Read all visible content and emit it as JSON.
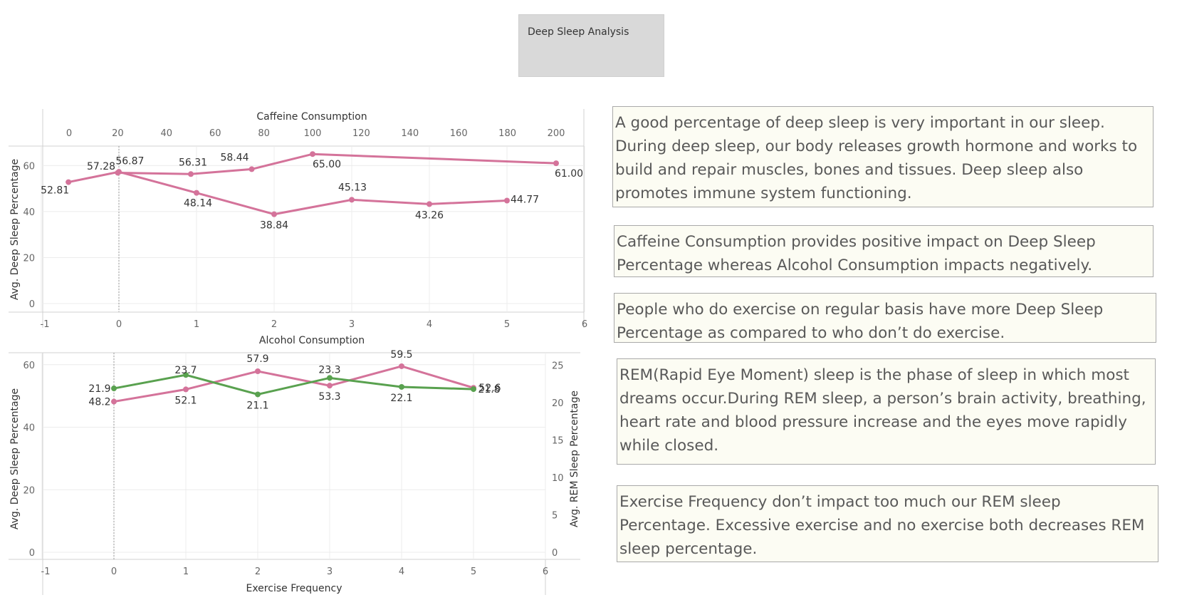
{
  "header": {
    "title": "Deep Sleep Analysis"
  },
  "chart_data": [
    {
      "type": "line",
      "series": [
        {
          "name": "",
          "xaxis": "Caffeine Consumption",
          "color": "#d4739a",
          "x": [
            20,
            50,
            75,
            100,
            200
          ],
          "y": [
            56.87,
            56.31,
            58.44,
            65.0,
            61.0
          ]
        },
        {
          "name": "",
          "xaxis": "Alcohol Consumption",
          "color": "#d4739a",
          "x": [
            -0.65,
            0,
            1,
            2,
            3,
            4,
            5
          ],
          "y": [
            52.81,
            57.28,
            48.14,
            38.84,
            45.13,
            43.26,
            44.77
          ]
        }
      ],
      "x_top": {
        "label": "Caffeine Consumption",
        "ticks": [
          0,
          20,
          40,
          60,
          80,
          100,
          120,
          140,
          160,
          180,
          200
        ]
      },
      "x_bottom": {
        "label": "Alcohol Consumption",
        "ticks": [
          -1,
          0,
          1,
          2,
          3,
          4,
          5,
          6
        ]
      },
      "ylabel": "Avg. Deep Sleep Percentage",
      "y_ticks": [
        0,
        20,
        40,
        60
      ],
      "ylim": [
        0,
        66
      ],
      "data_labels": [
        "52.81",
        "57.28",
        "56.87",
        "56.31",
        "48.14",
        "58.44",
        "38.84",
        "65.00",
        "45.13",
        "43.26",
        "44.77",
        "61.00"
      ],
      "grid": true
    },
    {
      "type": "line",
      "categories": [
        0,
        1,
        2,
        3,
        4,
        5
      ],
      "series": [
        {
          "name": "",
          "axis": "left",
          "color": "#d4739a",
          "values": [
            48.2,
            52.1,
            57.9,
            53.3,
            59.5,
            52.6
          ]
        },
        {
          "name": "",
          "axis": "right",
          "color": "#59a14f",
          "values": [
            21.9,
            23.7,
            21.1,
            23.3,
            22.1,
            21.8
          ]
        }
      ],
      "xlabel": "Exercise Frequency",
      "x_ticks": [
        -1,
        0,
        1,
        2,
        3,
        4,
        5,
        6
      ],
      "ylabel": "Avg. Deep Sleep Percentage",
      "y_ticks": [
        0,
        20,
        40,
        60
      ],
      "ylim": [
        0,
        62
      ],
      "y2label": "Avg. REM Sleep Percentage",
      "y2_ticks": [
        0,
        5,
        10,
        15,
        20,
        25
      ],
      "y2lim": [
        0,
        26
      ],
      "grid": true
    }
  ],
  "notes": [
    "A good percentage of deep sleep is very important in our sleep. During deep sleep, our body releases growth hormone and works to build and repair muscles, bones and tissues. Deep sleep also promotes immune system functioning.",
    "Caffeine Consumption provides positive impact on Deep Sleep Percentage whereas Alcohol Consumption impacts negatively.",
    "People who do exercise on regular basis have more Deep Sleep Percentage as compared to who don’t do exercise.",
    "REM(Rapid Eye Moment) sleep is the phase of sleep in which most dreams occur.During REM sleep, a person’s brain activity, breathing, heart rate and blood pressure increase and the eyes move rapidly while closed.",
    "Exercise Frequency don’t impact too much our REM sleep Percentage. Excessive exercise and no exercise both decreases REM sleep percentage."
  ]
}
